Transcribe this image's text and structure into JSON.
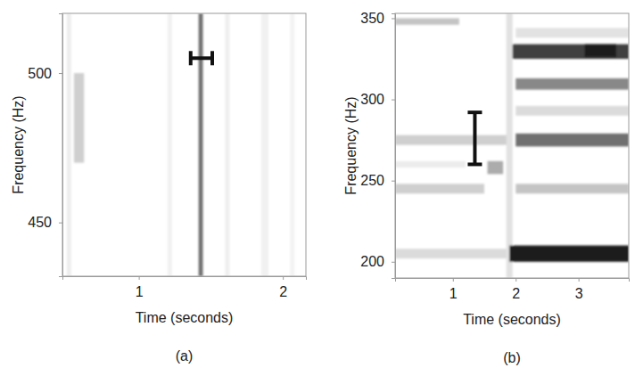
{
  "chart_data": [
    {
      "type": "spectrogram",
      "panel_label": "(a)",
      "x_label": "Time (seconds)",
      "y_label": "Frequency (Hz)",
      "xlim": [
        0.47,
        2.16
      ],
      "ylim": [
        432,
        520
      ],
      "xticks": [
        1,
        2
      ],
      "yticks": [
        450,
        500
      ],
      "zlim": [
        0,
        1
      ],
      "tracks": [
        {
          "x": [
            0.5,
            0.53
          ],
          "y": [
            432,
            520
          ],
          "level": 0.08
        },
        {
          "x": [
            0.55,
            0.62
          ],
          "y": [
            470,
            500
          ],
          "level": 0.2
        },
        {
          "x": [
            1.2,
            1.23
          ],
          "y": [
            432,
            520
          ],
          "level": 0.06
        },
        {
          "x": [
            1.415,
            1.445
          ],
          "y": [
            432,
            520
          ],
          "level": 0.6
        },
        {
          "x": [
            1.6,
            1.63
          ],
          "y": [
            432,
            520
          ],
          "level": 0.07
        },
        {
          "x": [
            1.85,
            1.9
          ],
          "y": [
            432,
            520
          ],
          "level": 0.06
        },
        {
          "x": [
            2.05,
            2.08
          ],
          "y": [
            432,
            520
          ],
          "level": 0.05
        }
      ],
      "brackets": [
        {
          "x": [
            1.36,
            1.51
          ],
          "y": 505
        }
      ]
    },
    {
      "type": "spectrogram",
      "panel_label": "(b)",
      "x_label": "Time (seconds)",
      "y_label": "Frequency (Hz)",
      "xlim": [
        0.08,
        3.8
      ],
      "ylim": [
        190,
        353
      ],
      "xticks": [
        1,
        2,
        3
      ],
      "yticks": [
        200,
        250,
        300,
        350
      ],
      "zlim": [
        0,
        1
      ],
      "tracks": [
        {
          "x": [
            0.08,
            1.1
          ],
          "y": [
            346,
            350
          ],
          "level": 0.25
        },
        {
          "x": [
            0.08,
            1.9
          ],
          "y": [
            272,
            278
          ],
          "level": 0.2
        },
        {
          "x": [
            0.08,
            1.5
          ],
          "y": [
            242,
            248
          ],
          "level": 0.2
        },
        {
          "x": [
            0.08,
            1.9
          ],
          "y": [
            202,
            208
          ],
          "level": 0.15
        },
        {
          "x": [
            0.08,
            1.2
          ],
          "y": [
            258,
            262
          ],
          "level": 0.08
        },
        {
          "x": [
            1.55,
            1.8
          ],
          "y": [
            254,
            262
          ],
          "level": 0.35
        },
        {
          "x": [
            1.85,
            1.95
          ],
          "y": [
            190,
            353
          ],
          "level": 0.12
        },
        {
          "x": [
            1.9,
            3.8
          ],
          "y": [
            200,
            210
          ],
          "level": 0.95
        },
        {
          "x": [
            1.95,
            3.8
          ],
          "y": [
            325,
            334
          ],
          "level": 0.8
        },
        {
          "x": [
            3.1,
            3.6
          ],
          "y": [
            326,
            334
          ],
          "level": 0.95
        },
        {
          "x": [
            2.0,
            3.8
          ],
          "y": [
            306,
            313
          ],
          "level": 0.5
        },
        {
          "x": [
            2.0,
            3.8
          ],
          "y": [
            271,
            279
          ],
          "level": 0.6
        },
        {
          "x": [
            2.0,
            3.8
          ],
          "y": [
            242,
            248
          ],
          "level": 0.25
        },
        {
          "x": [
            2.0,
            3.8
          ],
          "y": [
            290,
            296
          ],
          "level": 0.15
        },
        {
          "x": [
            2.0,
            3.8
          ],
          "y": [
            338,
            344
          ],
          "level": 0.12
        }
      ],
      "brackets": [
        {
          "x": 1.35,
          "y": [
            260,
            292
          ]
        }
      ]
    }
  ]
}
